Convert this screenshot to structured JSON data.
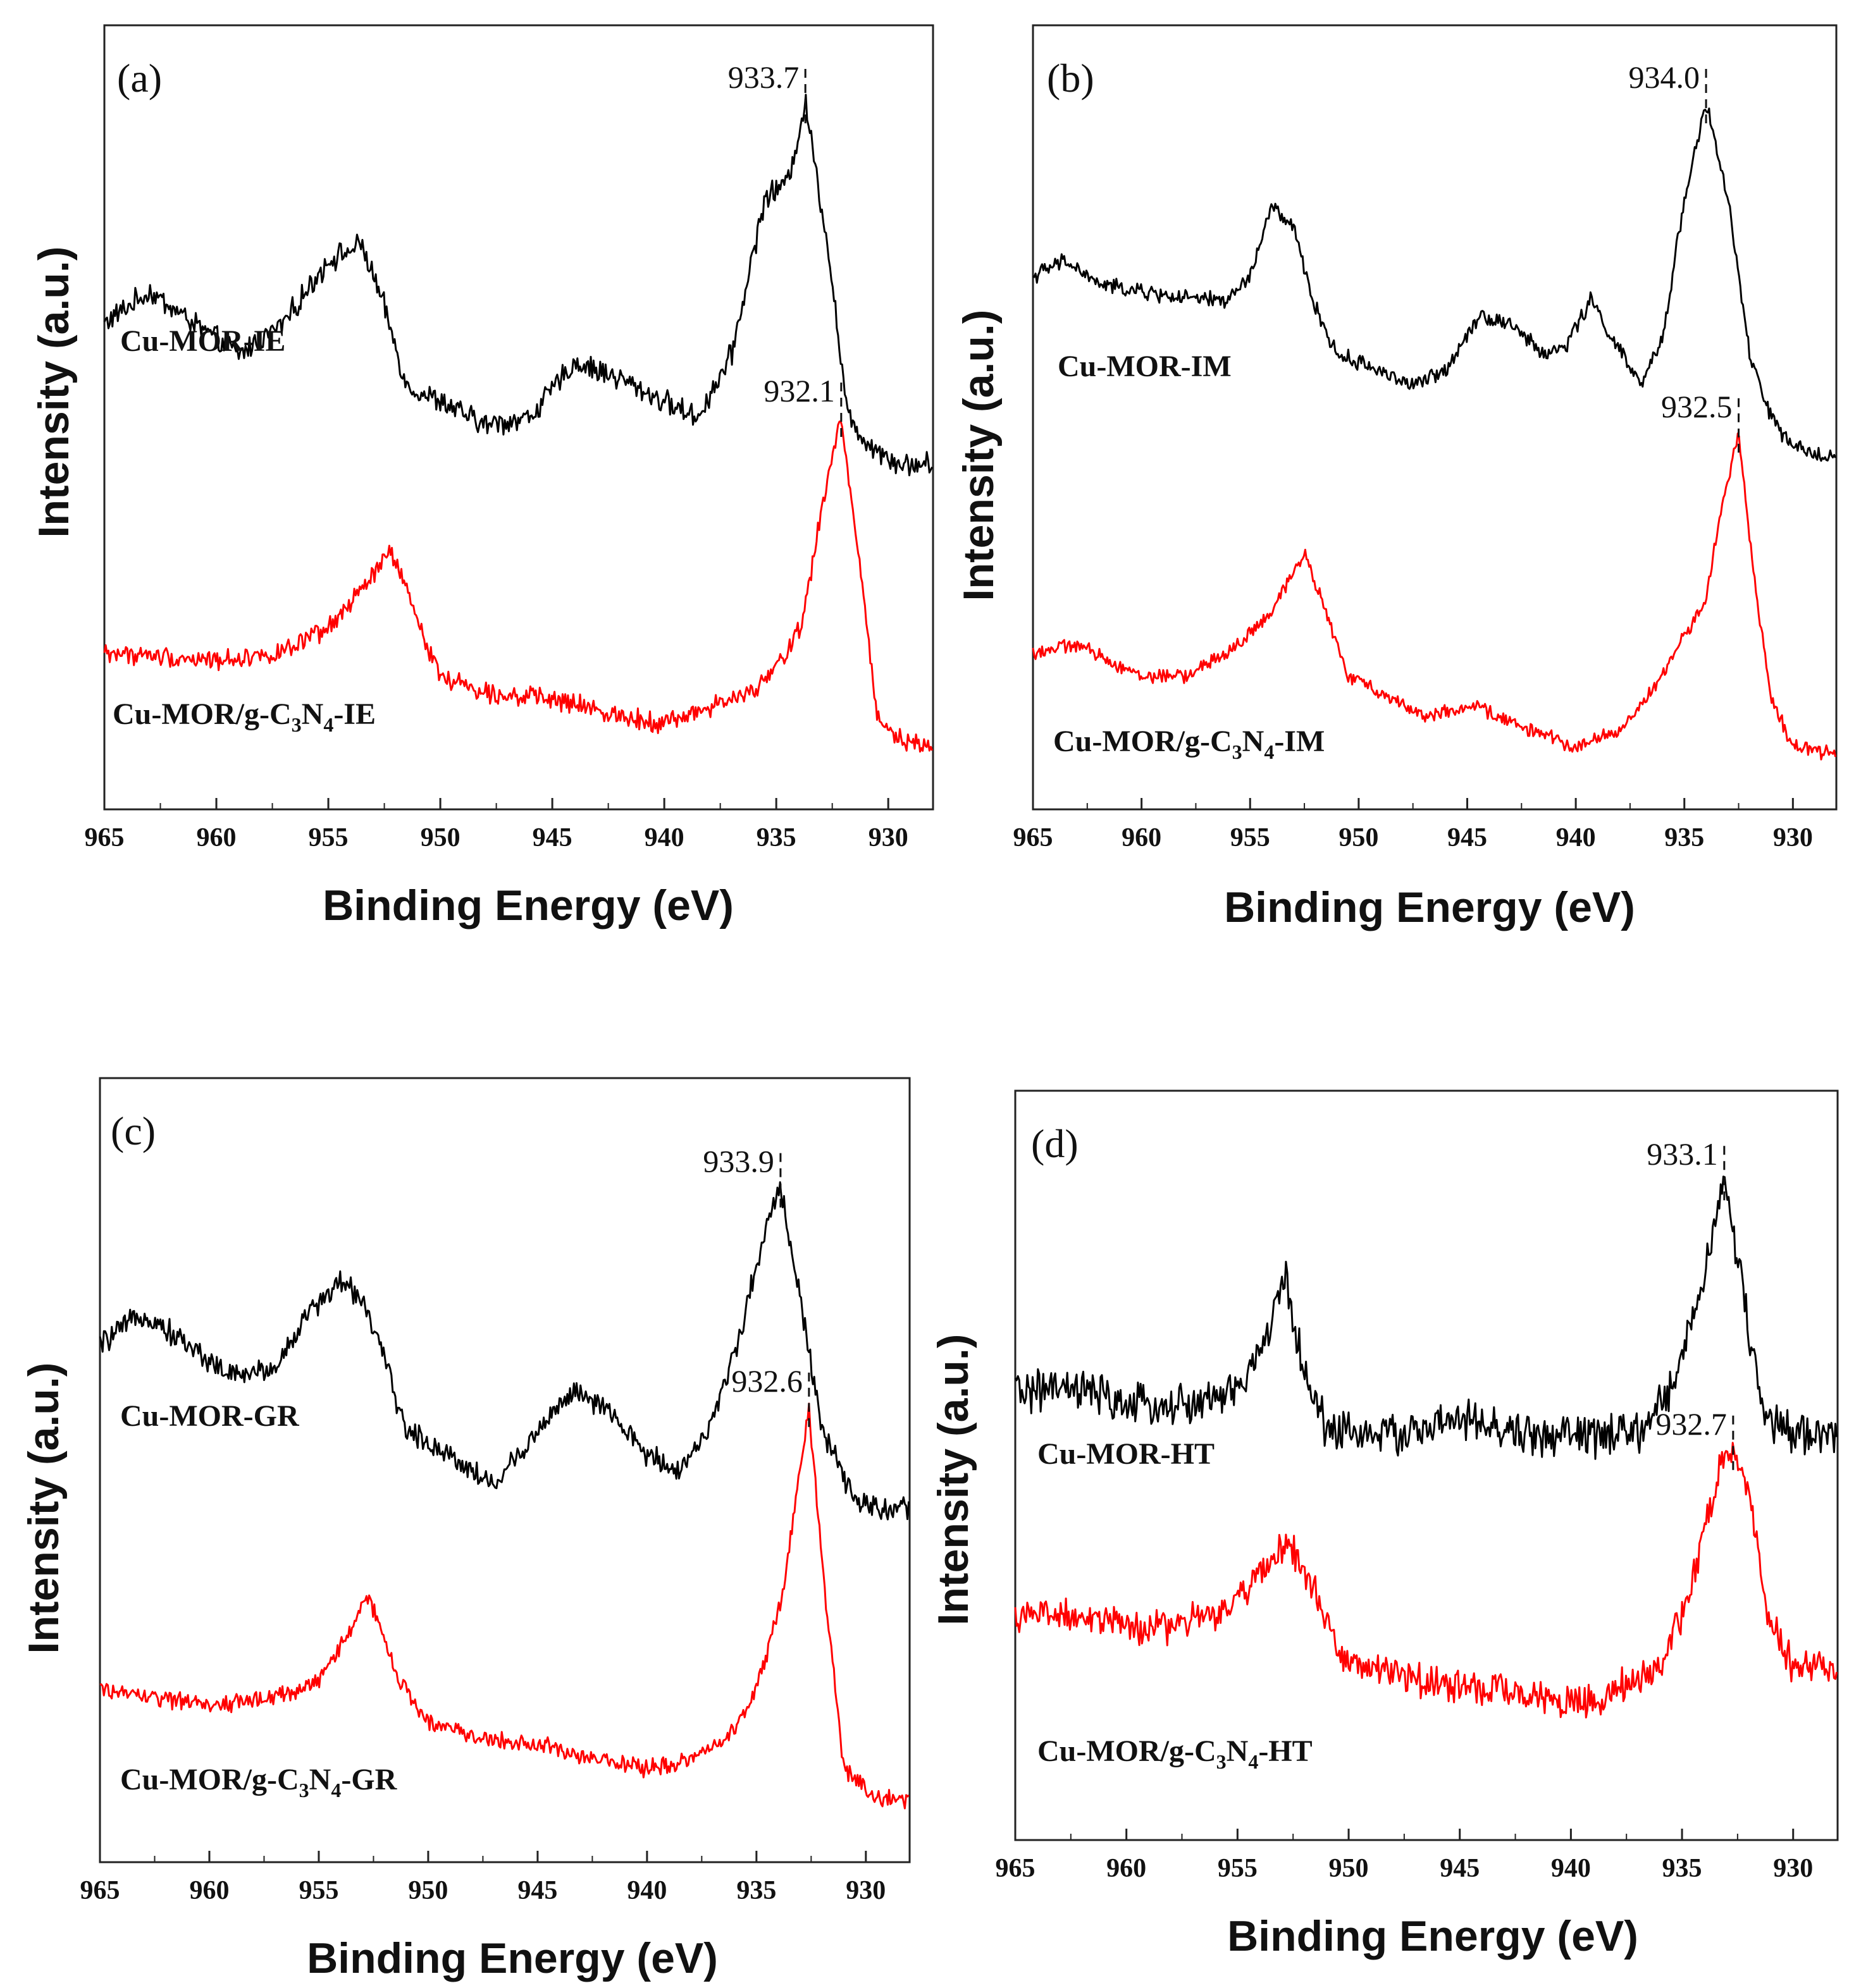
{
  "chart_data": [
    {
      "type": "line",
      "panel": "(a)",
      "xlabel": "Binding Energy (eV)",
      "ylabel": "Intensity (a.u.)",
      "xlim": [
        965,
        928
      ],
      "xticks": [
        965,
        960,
        955,
        950,
        945,
        940,
        935,
        930
      ],
      "series": [
        {
          "name": "Cu-MOR-IE",
          "label_main": "Cu-MOR-IE",
          "color": "#000000",
          "peak": {
            "x": 933.7,
            "label": "933.7"
          },
          "points": [
            [
              965,
              0.62
            ],
            [
              963,
              0.66
            ],
            [
              961,
              0.62
            ],
            [
              959,
              0.58
            ],
            [
              957,
              0.62
            ],
            [
              955,
              0.7
            ],
            [
              953.5,
              0.72
            ],
            [
              952.5,
              0.64
            ],
            [
              951.5,
              0.54
            ],
            [
              950,
              0.52
            ],
            [
              948,
              0.49
            ],
            [
              946,
              0.5
            ],
            [
              944,
              0.57
            ],
            [
              942,
              0.55
            ],
            [
              940,
              0.52
            ],
            [
              938.5,
              0.5
            ],
            [
              937,
              0.58
            ],
            [
              935.5,
              0.78
            ],
            [
              934.5,
              0.8
            ],
            [
              933.7,
              0.9
            ],
            [
              932.7,
              0.72
            ],
            [
              931.8,
              0.5
            ],
            [
              931,
              0.47
            ],
            [
              929.5,
              0.44
            ],
            [
              928,
              0.44
            ]
          ],
          "noise": 0.012
        },
        {
          "name": "Cu-MOR/g-C3N4-IE",
          "label_parts": [
            "Cu-MOR/g-C",
            "3",
            "N",
            "4",
            "-IE"
          ],
          "color": "#ff0000",
          "peak": {
            "x": 932.1,
            "label": "932.1"
          },
          "points": [
            [
              965,
              0.2
            ],
            [
              960,
              0.19
            ],
            [
              957,
              0.2
            ],
            [
              955,
              0.23
            ],
            [
              953.5,
              0.28
            ],
            [
              952.2,
              0.33
            ],
            [
              951,
              0.24
            ],
            [
              950,
              0.17
            ],
            [
              948,
              0.15
            ],
            [
              945,
              0.14
            ],
            [
              942,
              0.12
            ],
            [
              940,
              0.11
            ],
            [
              938,
              0.13
            ],
            [
              936,
              0.15
            ],
            [
              935,
              0.18
            ],
            [
              933.8,
              0.24
            ],
            [
              933,
              0.38
            ],
            [
              932.1,
              0.5
            ],
            [
              931.3,
              0.32
            ],
            [
              930.5,
              0.12
            ],
            [
              929.5,
              0.09
            ],
            [
              928,
              0.08
            ]
          ],
          "noise": 0.01
        }
      ]
    },
    {
      "type": "line",
      "panel": "(b)",
      "xlabel": "Binding Energy (eV)",
      "ylabel": "Intensity (a.u.)",
      "xlim": [
        965,
        928
      ],
      "xticks": [
        965,
        960,
        955,
        950,
        945,
        940,
        935,
        930
      ],
      "series": [
        {
          "name": "Cu-MOR-IM",
          "label_main": "Cu-MOR-IM",
          "color": "#000000",
          "peak": {
            "x": 934.0,
            "label": "934.0"
          },
          "points": [
            [
              965,
              0.68
            ],
            [
              963.5,
              0.7
            ],
            [
              962,
              0.67
            ],
            [
              960,
              0.66
            ],
            [
              957.5,
              0.65
            ],
            [
              956,
              0.65
            ],
            [
              955,
              0.68
            ],
            [
              954,
              0.77
            ],
            [
              953,
              0.74
            ],
            [
              952,
              0.64
            ],
            [
              951,
              0.58
            ],
            [
              949,
              0.56
            ],
            [
              947.5,
              0.54
            ],
            [
              946,
              0.56
            ],
            [
              944.5,
              0.63
            ],
            [
              943,
              0.62
            ],
            [
              941.5,
              0.58
            ],
            [
              940.5,
              0.59
            ],
            [
              939.3,
              0.65
            ],
            [
              938.3,
              0.6
            ],
            [
              937,
              0.54
            ],
            [
              936,
              0.6
            ],
            [
              935,
              0.78
            ],
            [
              934,
              0.9
            ],
            [
              933,
              0.78
            ],
            [
              932,
              0.58
            ],
            [
              931,
              0.5
            ],
            [
              930,
              0.46
            ],
            [
              928,
              0.45
            ]
          ],
          "noise": 0.008
        },
        {
          "name": "Cu-MOR/g-C3N4-IM",
          "label_parts": [
            "Cu-MOR/g-C",
            "3",
            "N",
            "4",
            "-IM"
          ],
          "color": "#ff0000",
          "peak": {
            "x": 932.5,
            "label": "932.5"
          },
          "points": [
            [
              965,
              0.2
            ],
            [
              963,
              0.21
            ],
            [
              960,
              0.17
            ],
            [
              958,
              0.17
            ],
            [
              956,
              0.2
            ],
            [
              954,
              0.25
            ],
            [
              952.5,
              0.33
            ],
            [
              951.5,
              0.25
            ],
            [
              950.5,
              0.17
            ],
            [
              949,
              0.15
            ],
            [
              947,
              0.12
            ],
            [
              944.5,
              0.13
            ],
            [
              942,
              0.1
            ],
            [
              940,
              0.08
            ],
            [
              938,
              0.1
            ],
            [
              936.5,
              0.15
            ],
            [
              935,
              0.22
            ],
            [
              934,
              0.27
            ],
            [
              933.3,
              0.38
            ],
            [
              932.5,
              0.48
            ],
            [
              931.8,
              0.3
            ],
            [
              931,
              0.14
            ],
            [
              930,
              0.08
            ],
            [
              928,
              0.07
            ]
          ],
          "noise": 0.007
        }
      ]
    },
    {
      "type": "line",
      "panel": "(c)",
      "xlabel": "Binding Energy (eV)",
      "ylabel": "Intensity (a.u.)",
      "xlim": [
        965,
        928
      ],
      "xticks": [
        965,
        960,
        955,
        950,
        945,
        940,
        935,
        930
      ],
      "series": [
        {
          "name": "Cu-MOR-GR",
          "label_main": "Cu-MOR-GR",
          "color": "#000000",
          "peak": {
            "x": 933.9,
            "label": "933.9"
          },
          "points": [
            [
              965,
              0.66
            ],
            [
              963,
              0.7
            ],
            [
              961,
              0.66
            ],
            [
              959,
              0.62
            ],
            [
              957,
              0.63
            ],
            [
              955.5,
              0.7
            ],
            [
              954,
              0.74
            ],
            [
              953,
              0.72
            ],
            [
              952,
              0.64
            ],
            [
              951,
              0.55
            ],
            [
              949,
              0.52
            ],
            [
              947,
              0.48
            ],
            [
              945,
              0.55
            ],
            [
              943.5,
              0.6
            ],
            [
              942,
              0.58
            ],
            [
              940,
              0.52
            ],
            [
              938.5,
              0.5
            ],
            [
              937,
              0.56
            ],
            [
              935.5,
              0.7
            ],
            [
              934.5,
              0.82
            ],
            [
              933.9,
              0.86
            ],
            [
              933,
              0.72
            ],
            [
              932,
              0.55
            ],
            [
              930.5,
              0.46
            ],
            [
              929,
              0.45
            ],
            [
              928,
              0.45
            ]
          ],
          "noise": 0.012
        },
        {
          "name": "Cu-MOR/g-C3N4-GR",
          "label_parts": [
            "Cu-MOR/g-C",
            "3",
            "N",
            "4",
            "-GR"
          ],
          "color": "#ff0000",
          "peak": {
            "x": 932.6,
            "label": "932.6"
          },
          "points": [
            [
              965,
              0.22
            ],
            [
              960,
              0.2
            ],
            [
              957,
              0.21
            ],
            [
              955,
              0.23
            ],
            [
              953.5,
              0.3
            ],
            [
              952.7,
              0.34
            ],
            [
              951.5,
              0.24
            ],
            [
              950,
              0.18
            ],
            [
              948,
              0.16
            ],
            [
              945,
              0.15
            ],
            [
              942,
              0.13
            ],
            [
              940,
              0.12
            ],
            [
              938,
              0.13
            ],
            [
              936,
              0.17
            ],
            [
              935,
              0.22
            ],
            [
              933.8,
              0.34
            ],
            [
              932.6,
              0.58
            ],
            [
              931.8,
              0.32
            ],
            [
              931,
              0.12
            ],
            [
              929.5,
              0.08
            ],
            [
              928,
              0.08
            ]
          ],
          "noise": 0.009
        }
      ]
    },
    {
      "type": "line",
      "panel": "(d)",
      "xlabel": "Binding Energy (eV)",
      "ylabel": "Intensity (a.u.)",
      "xlim": [
        965,
        928
      ],
      "xticks": [
        965,
        960,
        955,
        950,
        945,
        940,
        935,
        930
      ],
      "series": [
        {
          "name": "Cu-MOR-HT",
          "label_main": "Cu-MOR-HT",
          "color": "#000000",
          "peak": {
            "x": 933.1,
            "label": "933.1"
          },
          "points": [
            [
              965,
              0.6
            ],
            [
              962,
              0.6
            ],
            [
              960,
              0.58
            ],
            [
              957,
              0.58
            ],
            [
              955,
              0.6
            ],
            [
              954,
              0.65
            ],
            [
              952.8,
              0.75
            ],
            [
              952,
              0.62
            ],
            [
              951,
              0.55
            ],
            [
              948,
              0.54
            ],
            [
              945,
              0.56
            ],
            [
              942,
              0.54
            ],
            [
              940,
              0.54
            ],
            [
              937,
              0.54
            ],
            [
              935.5,
              0.6
            ],
            [
              934.3,
              0.72
            ],
            [
              933.1,
              0.88
            ],
            [
              932.3,
              0.74
            ],
            [
              931.3,
              0.56
            ],
            [
              930,
              0.54
            ],
            [
              928,
              0.54
            ]
          ],
          "noise": 0.022
        },
        {
          "name": "Cu-MOR/g-C3N4-HT",
          "label_parts": [
            "Cu-MOR/g-C",
            "3",
            "N",
            "4",
            "-HT"
          ],
          "color": "#ff0000",
          "peak": {
            "x": 932.7,
            "label": "932.7"
          },
          "points": [
            [
              965,
              0.3
            ],
            [
              962,
              0.3
            ],
            [
              959,
              0.28
            ],
            [
              956,
              0.3
            ],
            [
              954,
              0.35
            ],
            [
              952.8,
              0.4
            ],
            [
              951.5,
              0.33
            ],
            [
              950.5,
              0.25
            ],
            [
              949,
              0.23
            ],
            [
              946,
              0.21
            ],
            [
              943,
              0.2
            ],
            [
              940,
              0.18
            ],
            [
              938,
              0.2
            ],
            [
              936,
              0.23
            ],
            [
              934.6,
              0.33
            ],
            [
              933.3,
              0.5
            ],
            [
              932.7,
              0.52
            ],
            [
              932,
              0.48
            ],
            [
              931.2,
              0.3
            ],
            [
              930,
              0.23
            ],
            [
              928,
              0.23
            ]
          ],
          "noise": 0.018
        }
      ]
    }
  ]
}
